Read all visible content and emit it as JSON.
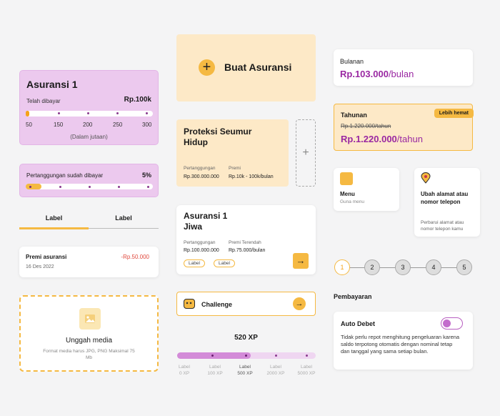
{
  "insurance_card": {
    "title": "Asuransi 1",
    "paid_label": "Telah dibayar",
    "paid_amount": "Rp.100k",
    "progress_ticks": [
      "50",
      "150",
      "200",
      "250",
      "300"
    ],
    "unit_note": "(Dalam jutaan)",
    "progress_fraction": 0.02
  },
  "coverage_card": {
    "label": "Pertanggungan sudah dibayar",
    "percent": "5%",
    "progress_fraction": 0.05
  },
  "tabs": [
    {
      "label": "Label"
    },
    {
      "label": "Label"
    }
  ],
  "premium_row": {
    "title": "Premi asuransi",
    "date": "16 Des 2022",
    "amount": "-Rp.50.000"
  },
  "upload": {
    "title": "Unggah media",
    "hint": "Format media harus JPG, PNG Maksimal 75 Mb"
  },
  "create_card": {
    "label": "Buat Asuransi"
  },
  "protection_card": {
    "title": "Proteksi Seumur Hidup",
    "coverage_label": "Pertanggungan",
    "coverage_value": "Rp.300.000.000",
    "premium_label": "Premi",
    "premium_value": "Rp.10k - 100k/bulan"
  },
  "life_card": {
    "title": "Asuransi 1 Jiwa",
    "coverage_label": "Pertanggungan",
    "coverage_value": "Rp.100.000.000",
    "premium_label": "Premi Terendah",
    "premium_value": "Rp.75.000/bulan",
    "chips": [
      "Label",
      "Label"
    ]
  },
  "challenge": {
    "label": "Challenge"
  },
  "xp": {
    "value": "520 XP",
    "progress_fraction": 0.4,
    "levels": [
      {
        "label": "Label",
        "xp": "0 XP"
      },
      {
        "label": "Label",
        "xp": "100 XP"
      },
      {
        "label": "Label",
        "xp": "500 XP"
      },
      {
        "label": "Label",
        "xp": "2000 XP"
      },
      {
        "label": "Label",
        "xp": "5000 XP"
      }
    ]
  },
  "monthly_plan": {
    "label": "Bulanan",
    "price": "Rp.103.000",
    "period": "/bulan"
  },
  "yearly_plan": {
    "label": "Tahunan",
    "old_price": "Rp.1.220.000/tahun",
    "price": "Rp.1.220.000",
    "period": "/tahun",
    "badge": "Lebih hemat"
  },
  "menu_tile": {
    "title": "Menu",
    "subtitle": "Guna menu"
  },
  "address_tile": {
    "title": "Ubah alamat atau nomor telepon",
    "subtitle": "Perbarui alamat atau nomor telepon kamu"
  },
  "stepper": {
    "steps": [
      "1",
      "2",
      "3",
      "4",
      "5"
    ],
    "active": "1"
  },
  "payment": {
    "heading": "Pembayaran",
    "auto_debit_label": "Auto Debet",
    "auto_debit_desc": "Tidak perlu repot menghitung pengeluaran karena saldo terpotong otomatis dengan nominal tetap dan tanggal yang sama setiap bulan.",
    "auto_debit_on": true
  },
  "colors": {
    "accent": "#f5b942",
    "purple": "#9a28a2",
    "lilac": "#ecc9ee",
    "cream": "#fde9c7"
  }
}
